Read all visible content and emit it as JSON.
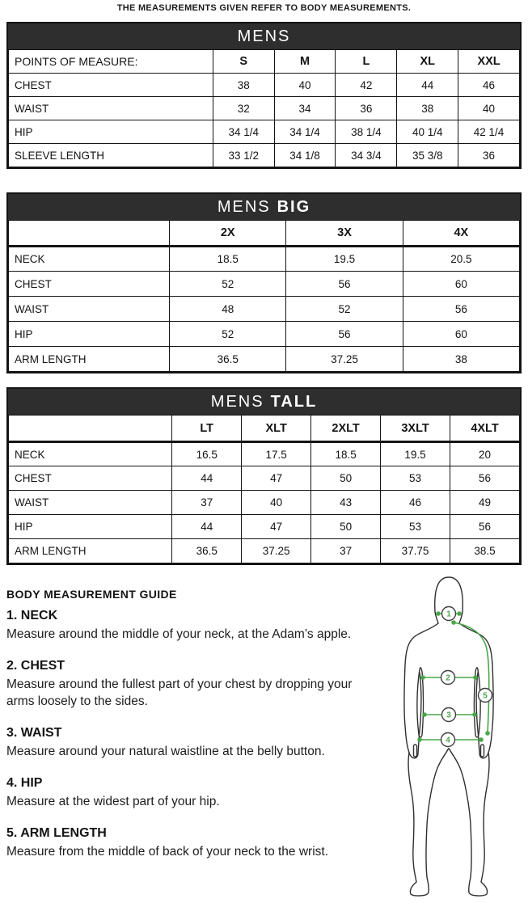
{
  "intro": "THE MEASUREMENTS GIVEN REFER TO BODY MEASUREMENTS.",
  "colors": {
    "banner": "#2e2e2e",
    "banner_text": "#ffffff",
    "border": "#141414",
    "accent_green": "#4aa64a",
    "figure_outline": "#2f2f2f"
  },
  "tables": [
    {
      "title": "MENS",
      "title_bold": "",
      "header": [
        "POINTS OF MEASURE:",
        "S",
        "M",
        "L",
        "XL",
        "XXL"
      ],
      "rows": [
        [
          "CHEST",
          "38",
          "40",
          "42",
          "44",
          "46"
        ],
        [
          "WAIST",
          "32",
          "34",
          "36",
          "38",
          "40"
        ],
        [
          "HIP",
          "34 1/4",
          "34 1/4",
          "38 1/4",
          "40 1/4",
          "42 1/4"
        ],
        [
          "SLEEVE LENGTH",
          "33 1/2",
          "34 1/8",
          "34 3/4",
          "35 3/8",
          "36"
        ]
      ]
    },
    {
      "title": "MENS",
      "title_bold": "BIG",
      "header": [
        "",
        "2X",
        "3X",
        "4X"
      ],
      "rows": [
        [
          "NECK",
          "18.5",
          "19.5",
          "20.5"
        ],
        [
          "CHEST",
          "52",
          "56",
          "60"
        ],
        [
          "WAIST",
          "48",
          "52",
          "56"
        ],
        [
          "HIP",
          "52",
          "56",
          "60"
        ],
        [
          "ARM LENGTH",
          "36.5",
          "37.25",
          "38"
        ]
      ]
    },
    {
      "title": "MENS",
      "title_bold": "TALL",
      "header": [
        "",
        "LT",
        "XLT",
        "2XLT",
        "3XLT",
        "4XLT"
      ],
      "rows": [
        [
          "NECK",
          "16.5",
          "17.5",
          "18.5",
          "19.5",
          "20"
        ],
        [
          "CHEST",
          "44",
          "47",
          "50",
          "53",
          "56"
        ],
        [
          "WAIST",
          "37",
          "40",
          "43",
          "46",
          "49"
        ],
        [
          "HIP",
          "44",
          "47",
          "50",
          "53",
          "56"
        ],
        [
          "ARM LENGTH",
          "36.5",
          "37.25",
          "37",
          "37.75",
          "38.5"
        ]
      ]
    }
  ],
  "guide": {
    "title": "BODY MEASUREMENT GUIDE",
    "items": [
      {
        "heading": "1. NECK",
        "text": "Measure around the middle of your neck, at the Adam’s apple."
      },
      {
        "heading": "2. CHEST",
        "text": "Measure around the fullest part of your chest by dropping your arms loosely to the sides."
      },
      {
        "heading": "3. WAIST",
        "text": "Measure around your natural waistline at the belly button."
      },
      {
        "heading": "4. HIP",
        "text": "Measure at the widest part of your hip."
      },
      {
        "heading": "5. ARM LENGTH",
        "text": "Measure from the middle of back of your neck to the wrist."
      }
    ],
    "figure_markers": [
      "1",
      "2",
      "3",
      "4",
      "5"
    ]
  }
}
